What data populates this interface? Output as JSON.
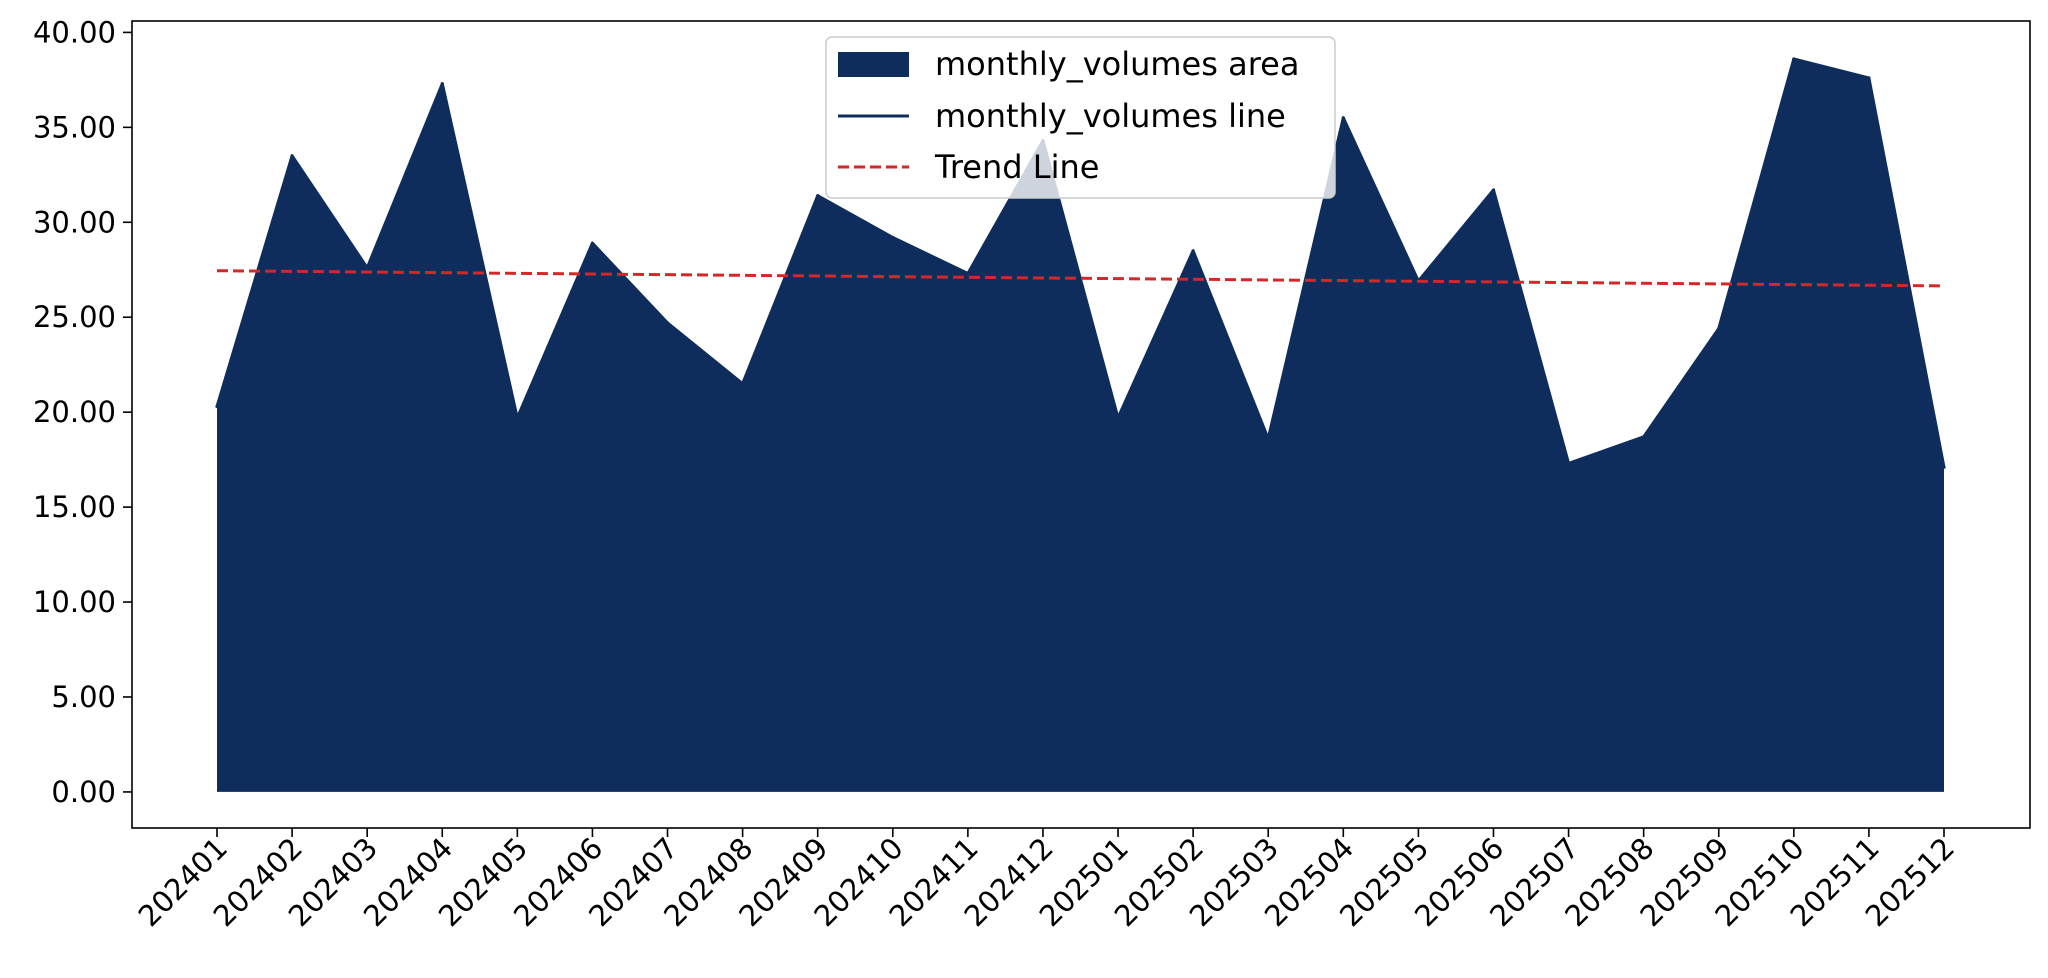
{
  "chart_data": {
    "type": "area",
    "categories": [
      "202401",
      "202402",
      "202403",
      "202404",
      "202405",
      "202406",
      "202407",
      "202408",
      "202409",
      "202410",
      "202411",
      "202412",
      "202501",
      "202502",
      "202503",
      "202504",
      "202505",
      "202506",
      "202507",
      "202508",
      "202509",
      "202510",
      "202511",
      "202512"
    ],
    "series": [
      {
        "name": "monthly_volumes area",
        "kind": "area",
        "color": "#0e2c5c",
        "values": [
          20.3,
          33.5,
          27.6,
          37.3,
          19.7,
          28.9,
          24.7,
          21.5,
          31.4,
          29.2,
          27.3,
          34.3,
          19.7,
          28.5,
          18.6,
          35.5,
          26.9,
          31.7,
          17.3,
          18.7,
          24.4,
          38.6,
          37.6,
          17.1
        ]
      },
      {
        "name": "monthly_volumes line",
        "kind": "line",
        "color": "#0e2c5c",
        "values": [
          20.3,
          33.5,
          27.6,
          37.3,
          19.7,
          28.9,
          24.7,
          21.5,
          31.4,
          29.2,
          27.3,
          34.3,
          19.7,
          28.5,
          18.6,
          35.5,
          26.9,
          31.7,
          17.3,
          18.7,
          24.4,
          38.6,
          37.6,
          17.1
        ]
      },
      {
        "name": "Trend Line",
        "kind": "trend",
        "color": "#d62728",
        "start": 27.45,
        "end": 26.65
      }
    ],
    "yticks": [
      "0.00",
      "5.00",
      "10.00",
      "15.00",
      "20.00",
      "25.00",
      "30.00",
      "35.00",
      "40.00"
    ],
    "ylim": [
      -1.9,
      40.6
    ],
    "grid": false,
    "legend_position": "top-center",
    "title": "",
    "xlabel": "",
    "ylabel": ""
  }
}
